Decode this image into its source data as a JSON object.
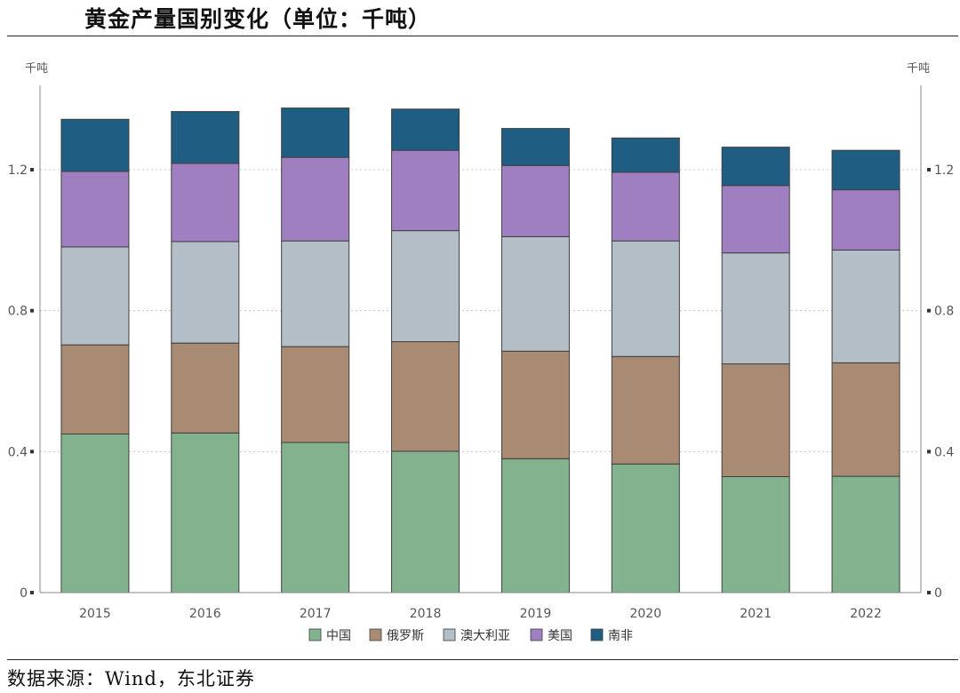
{
  "title": "黄金产量国别变化（单位：千吨）",
  "source": "数据来源：Wind，东北证券",
  "chart_data": {
    "type": "bar",
    "stacked": true,
    "title": "黄金产量国别变化（单位：千吨）",
    "unit_left": "千吨",
    "unit_right": "千吨",
    "categories": [
      "2015",
      "2016",
      "2017",
      "2018",
      "2019",
      "2020",
      "2021",
      "2022"
    ],
    "ylim": [
      0,
      1.44
    ],
    "yticks": [
      {
        "value": 0,
        "label": "0"
      },
      {
        "value": 0.4,
        "label": "0.4"
      },
      {
        "value": 0.8,
        "label": "0.8"
      },
      {
        "value": 1.2,
        "label": "1.2"
      }
    ],
    "legend_position": "bottom-center",
    "series": [
      {
        "name": "中国",
        "color": "#82b38e",
        "values": [
          0.45,
          0.453,
          0.426,
          0.401,
          0.38,
          0.365,
          0.329,
          0.33
        ]
      },
      {
        "name": "俄罗斯",
        "color": "#a98a72",
        "values": [
          0.253,
          0.255,
          0.272,
          0.311,
          0.305,
          0.305,
          0.32,
          0.322
        ]
      },
      {
        "name": "澳大利亚",
        "color": "#b3bec7",
        "values": [
          0.278,
          0.288,
          0.3,
          0.315,
          0.325,
          0.328,
          0.315,
          0.32
        ]
      },
      {
        "name": "美国",
        "color": "#9f7fbf",
        "values": [
          0.214,
          0.222,
          0.237,
          0.228,
          0.202,
          0.195,
          0.191,
          0.171
        ]
      },
      {
        "name": "南非",
        "color": "#1f5e82",
        "values": [
          0.148,
          0.147,
          0.14,
          0.117,
          0.105,
          0.097,
          0.109,
          0.112
        ]
      }
    ]
  }
}
